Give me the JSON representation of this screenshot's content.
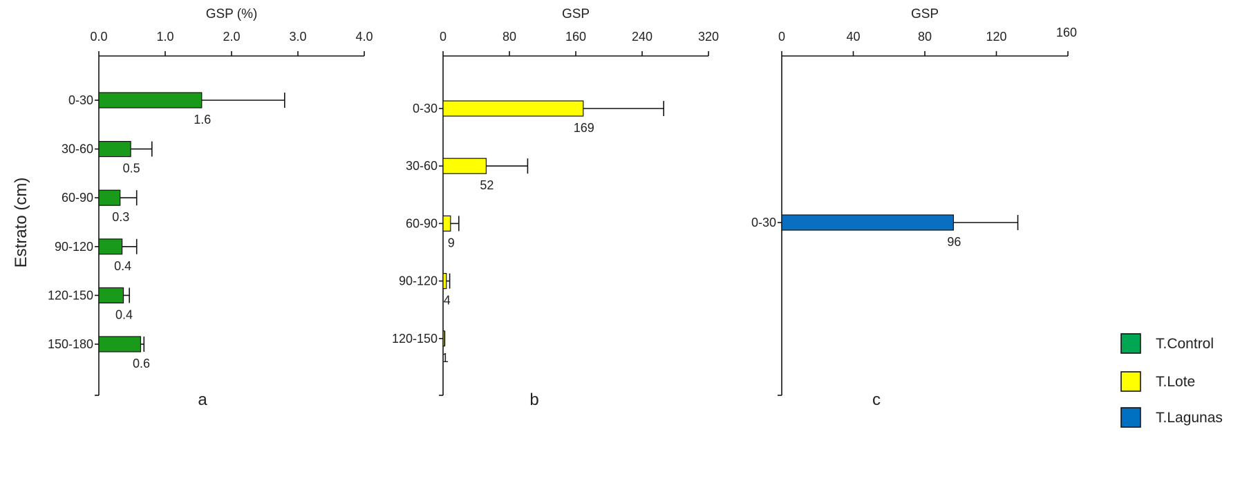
{
  "ylabel": "Estrato (cm)",
  "legend": [
    {
      "label": "T.Control",
      "color": "#00a651"
    },
    {
      "label": "T.Lote",
      "color": "#ffff00"
    },
    {
      "label": "T.Lagunas",
      "color": "#0070c0"
    }
  ],
  "chart_data": [
    {
      "type": "bar",
      "orientation": "horizontal",
      "panel": "a",
      "xlabel": "GSP (%)",
      "xlim": [
        0,
        4
      ],
      "xticks": [
        "0.0",
        "1.0",
        "2.0",
        "3.0",
        "4.0"
      ],
      "categories": [
        "0-30",
        "30-60",
        "60-90",
        "90-120",
        "120-150",
        "150-180"
      ],
      "values": [
        1.55,
        0.48,
        0.32,
        0.35,
        0.37,
        0.63
      ],
      "value_labels": [
        "1.6",
        "0.5",
        "0.3",
        "0.4",
        "0.4",
        "0.6"
      ],
      "error_upper": [
        2.8,
        0.8,
        0.57,
        0.57,
        0.46,
        0.68
      ],
      "color": "#1a9a1a",
      "legend_placement": "bottom-right"
    },
    {
      "type": "bar",
      "orientation": "horizontal",
      "panel": "b",
      "xlabel": "GSP",
      "xlim": [
        0,
        320
      ],
      "xticks": [
        "0",
        "80",
        "160",
        "240",
        "320"
      ],
      "categories": [
        "0-30",
        "30-60",
        "60-90",
        "90-120",
        "120-150"
      ],
      "values": [
        169,
        52,
        9,
        4,
        1
      ],
      "value_labels": [
        "169",
        "52",
        "9",
        "4",
        "1"
      ],
      "error_upper": [
        266,
        102,
        19,
        8,
        2
      ],
      "color": "#ffff00"
    },
    {
      "type": "bar",
      "orientation": "horizontal",
      "panel": "c",
      "xlabel": "GSP",
      "xlim": [
        0,
        160
      ],
      "xticks": [
        "0",
        "40",
        "80",
        "120",
        "160"
      ],
      "categories": [
        "0-30"
      ],
      "values": [
        96
      ],
      "value_labels": [
        "96"
      ],
      "error_upper": [
        132
      ],
      "color": "#0a6fc0"
    }
  ]
}
